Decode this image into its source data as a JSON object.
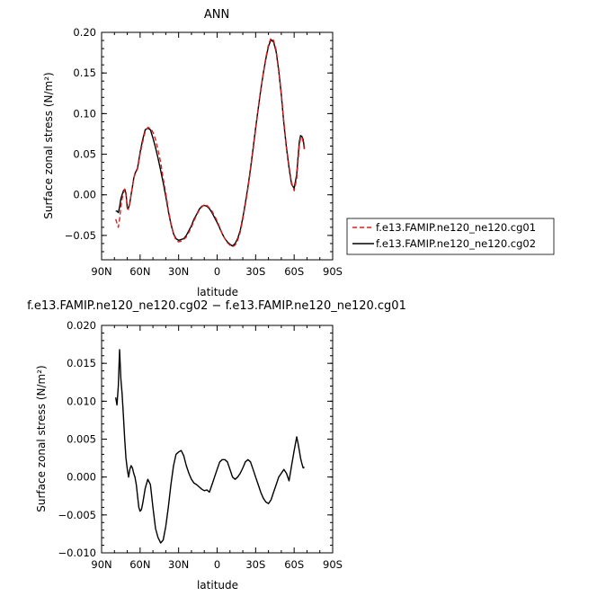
{
  "chart_data": [
    {
      "type": "line",
      "title": "ANN",
      "xlabel": "latitude",
      "ylabel": "Surface zonal stress (N/m²)",
      "xlim": [
        90,
        -90
      ],
      "ylim": [
        -0.08,
        0.2
      ],
      "x_tick_labels": [
        "90N",
        "60N",
        "30N",
        "0",
        "30S",
        "60S",
        "90S"
      ],
      "y_ticks": [
        -0.05,
        0.0,
        0.05,
        0.1,
        0.15,
        0.2
      ],
      "y_tick_labels": [
        "−0.05",
        "0.00",
        "0.05",
        "0.10",
        "0.15",
        "0.20"
      ],
      "legend_position": "outside-right",
      "series": [
        {
          "name": "f.e13.FAMIP.ne120_ne120.cg01",
          "color": "#d62020",
          "dash": "dashed",
          "x": [
            79,
            78,
            77,
            76,
            75,
            74,
            73,
            72,
            71,
            70,
            69,
            68,
            67,
            66,
            65,
            64,
            62,
            60,
            58,
            56,
            54,
            52,
            50,
            48,
            46,
            44,
            42,
            40,
            38,
            36,
            34,
            32,
            30,
            28,
            26,
            24,
            22,
            20,
            18,
            16,
            14,
            12,
            10,
            8,
            6,
            4,
            2,
            0,
            -2,
            -4,
            -6,
            -8,
            -10,
            -12,
            -14,
            -16,
            -18,
            -20,
            -22,
            -24,
            -26,
            -28,
            -30,
            -32,
            -34,
            -36,
            -38,
            -40,
            -42,
            -44,
            -46,
            -48,
            -50,
            -52,
            -54,
            -56,
            -58,
            -60,
            -62,
            -63,
            -64,
            -65,
            -66,
            -67,
            -68
          ],
          "y": [
            -0.03,
            -0.035,
            -0.04,
            -0.03,
            -0.015,
            -0.005,
            0.002,
            0.007,
            0.0,
            -0.017,
            -0.018,
            -0.01,
            0.0,
            0.01,
            0.02,
            0.025,
            0.032,
            0.05,
            0.065,
            0.078,
            0.083,
            0.082,
            0.077,
            0.068,
            0.055,
            0.04,
            0.02,
            0.002,
            -0.018,
            -0.035,
            -0.048,
            -0.056,
            -0.058,
            -0.057,
            -0.055,
            -0.052,
            -0.046,
            -0.04,
            -0.032,
            -0.025,
            -0.019,
            -0.015,
            -0.012,
            -0.013,
            -0.016,
            -0.02,
            -0.026,
            -0.032,
            -0.04,
            -0.048,
            -0.054,
            -0.059,
            -0.062,
            -0.064,
            -0.062,
            -0.056,
            -0.046,
            -0.03,
            -0.012,
            0.008,
            0.03,
            0.055,
            0.08,
            0.105,
            0.128,
            0.15,
            0.17,
            0.185,
            0.193,
            0.19,
            0.178,
            0.155,
            0.125,
            0.09,
            0.06,
            0.035,
            0.015,
            0.005,
            0.02,
            0.04,
            0.06,
            0.07,
            0.071,
            0.065,
            0.055
          ]
        },
        {
          "name": "f.e13.FAMIP.ne120_ne120.cg02",
          "color": "#000000",
          "dash": "solid",
          "x": [
            79,
            78,
            77,
            76,
            75,
            74,
            73,
            72,
            71,
            70,
            69,
            68,
            67,
            66,
            65,
            64,
            62,
            60,
            58,
            56,
            54,
            52,
            50,
            48,
            46,
            44,
            42,
            40,
            38,
            36,
            34,
            32,
            30,
            28,
            26,
            24,
            22,
            20,
            18,
            16,
            14,
            12,
            10,
            8,
            6,
            4,
            2,
            0,
            -2,
            -4,
            -6,
            -8,
            -10,
            -12,
            -14,
            -16,
            -18,
            -20,
            -22,
            -24,
            -26,
            -28,
            -30,
            -32,
            -34,
            -36,
            -38,
            -40,
            -42,
            -44,
            -46,
            -48,
            -50,
            -52,
            -54,
            -56,
            -58,
            -60,
            -62,
            -63,
            -64,
            -65,
            -66,
            -67,
            -68
          ],
          "y": [
            -0.02,
            -0.02,
            -0.022,
            -0.015,
            -0.005,
            0.0,
            0.005,
            0.007,
            0.002,
            -0.016,
            -0.016,
            -0.01,
            0.0,
            0.01,
            0.02,
            0.026,
            0.033,
            0.052,
            0.068,
            0.08,
            0.082,
            0.08,
            0.07,
            0.058,
            0.045,
            0.03,
            0.015,
            -0.002,
            -0.02,
            -0.036,
            -0.048,
            -0.054,
            -0.056,
            -0.055,
            -0.054,
            -0.05,
            -0.044,
            -0.038,
            -0.03,
            -0.024,
            -0.018,
            -0.014,
            -0.013,
            -0.014,
            -0.017,
            -0.022,
            -0.028,
            -0.034,
            -0.041,
            -0.048,
            -0.054,
            -0.058,
            -0.061,
            -0.063,
            -0.06,
            -0.054,
            -0.044,
            -0.028,
            -0.01,
            0.01,
            0.032,
            0.057,
            0.082,
            0.106,
            0.129,
            0.15,
            0.168,
            0.183,
            0.191,
            0.188,
            0.176,
            0.153,
            0.123,
            0.088,
            0.058,
            0.033,
            0.013,
            0.008,
            0.025,
            0.045,
            0.065,
            0.073,
            0.072,
            0.068,
            0.057
          ]
        }
      ]
    },
    {
      "type": "line",
      "title": "f.e13.FAMIP.ne120_ne120.cg02 − f.e13.FAMIP.ne120_ne120.cg01",
      "xlabel": "latitude",
      "ylabel": "Surface zonal stress (N/m²)",
      "xlim": [
        90,
        -90
      ],
      "ylim": [
        -0.01,
        0.02
      ],
      "x_tick_labels": [
        "90N",
        "60N",
        "30N",
        "0",
        "30S",
        "60S",
        "90S"
      ],
      "y_ticks": [
        -0.01,
        -0.005,
        0.0,
        0.005,
        0.01,
        0.015,
        0.02
      ],
      "y_tick_labels": [
        "−0.010",
        "−0.005",
        "0.000",
        "0.005",
        "0.010",
        "0.015",
        "0.020"
      ],
      "series": [
        {
          "color": "#000000",
          "dash": "solid",
          "x": [
            79,
            78,
            77,
            76,
            75,
            74,
            73,
            72,
            71,
            70,
            69,
            68,
            67,
            66,
            65,
            64,
            63,
            62,
            61,
            60,
            59,
            58,
            56,
            54,
            52,
            50,
            48,
            46,
            44,
            42,
            40,
            38,
            36,
            34,
            32,
            30,
            28,
            26,
            24,
            22,
            20,
            18,
            16,
            14,
            12,
            10,
            8,
            6,
            4,
            2,
            0,
            -2,
            -4,
            -6,
            -8,
            -10,
            -12,
            -14,
            -16,
            -18,
            -20,
            -22,
            -24,
            -26,
            -28,
            -30,
            -32,
            -34,
            -36,
            -38,
            -40,
            -42,
            -44,
            -46,
            -48,
            -50,
            -52,
            -54,
            -56,
            -58,
            -60,
            -62,
            -63,
            -64,
            -65,
            -66,
            -67,
            -68
          ],
          "y": [
            0.0105,
            0.0095,
            0.012,
            0.0168,
            0.013,
            0.011,
            0.008,
            0.005,
            0.0025,
            0.001,
            0.0,
            0.001,
            0.0015,
            0.0012,
            0.0005,
            0.0,
            -0.001,
            -0.0025,
            -0.004,
            -0.0045,
            -0.0043,
            -0.0035,
            -0.0015,
            -0.0003,
            -0.001,
            -0.004,
            -0.0068,
            -0.008,
            -0.0087,
            -0.0083,
            -0.0065,
            -0.004,
            -0.001,
            0.0015,
            0.003,
            0.0033,
            0.0035,
            0.0028,
            0.0015,
            0.0005,
            -0.0003,
            -0.0008,
            -0.001,
            -0.0013,
            -0.0016,
            -0.0018,
            -0.0017,
            -0.002,
            -0.001,
            0.0,
            0.001,
            0.002,
            0.0023,
            0.0023,
            0.002,
            0.001,
            0.0,
            -0.0003,
            0.0,
            0.0005,
            0.0012,
            0.002,
            0.0023,
            0.002,
            0.001,
            0.0,
            -0.001,
            -0.002,
            -0.0028,
            -0.0033,
            -0.0035,
            -0.003,
            -0.002,
            -0.001,
            0.0,
            0.0005,
            0.001,
            0.0005,
            -0.0005,
            0.0015,
            0.0035,
            0.0053,
            0.0045,
            0.0035,
            0.0025,
            0.0018,
            0.0012,
            0.0013
          ]
        }
      ]
    }
  ]
}
